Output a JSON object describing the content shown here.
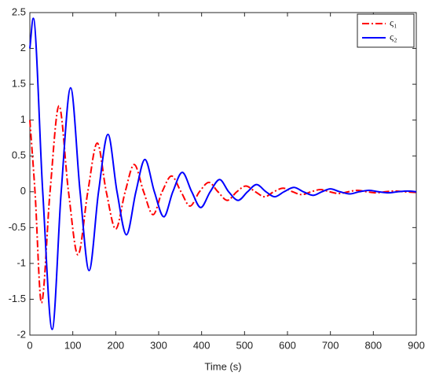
{
  "chart_data": {
    "type": "line",
    "x_label": "Time (s)",
    "xlim": [
      0,
      900
    ],
    "xticks": [
      0,
      100,
      200,
      300,
      400,
      500,
      600,
      700,
      800,
      900
    ],
    "ylim": [
      -2,
      2.5
    ],
    "yticks": [
      -2,
      -1.5,
      -1,
      -0.5,
      0,
      0.5,
      1,
      1.5,
      2,
      2.5
    ],
    "grid": false,
    "legend": "upper right",
    "series": [
      {
        "name": "ς₁",
        "color": "#ff0000",
        "style": "dashdot",
        "x": [
          0,
          12,
          27,
          47,
          68,
          90,
          112,
          135,
          157,
          178,
          200,
          222,
          243,
          265,
          287,
          308,
          330,
          352,
          373,
          395,
          417,
          438,
          460,
          482,
          503,
          525,
          547,
          568,
          590,
          612,
          633,
          655,
          677,
          698,
          720,
          742,
          763,
          785,
          807,
          828,
          850,
          872,
          900
        ],
        "values": [
          1.0,
          0,
          -1.55,
          0,
          1.2,
          0,
          -0.88,
          0,
          0.68,
          0,
          -0.52,
          0,
          0.38,
          0,
          -0.32,
          0,
          0.22,
          0,
          -0.2,
          0,
          0.13,
          0,
          -0.12,
          0,
          0.08,
          0,
          -0.07,
          0,
          0.05,
          0,
          -0.04,
          0,
          0.03,
          0,
          -0.025,
          0,
          0.02,
          0,
          -0.015,
          0,
          0.01,
          0,
          -0.01
        ]
      },
      {
        "name": "ς₂",
        "color": "#0000ff",
        "style": "solid",
        "x": [
          0,
          8,
          30,
          52,
          73,
          95,
          117,
          138,
          160,
          182,
          203,
          225,
          247,
          268,
          290,
          312,
          333,
          355,
          377,
          398,
          420,
          442,
          463,
          485,
          507,
          528,
          550,
          570,
          592,
          615,
          637,
          660,
          680,
          700,
          722,
          745,
          767,
          790,
          812,
          835,
          857,
          880,
          900
        ],
        "values": [
          2.0,
          2.42,
          0,
          -1.92,
          0,
          1.45,
          0,
          -1.1,
          0,
          0.8,
          0,
          -0.6,
          0,
          0.45,
          0,
          -0.35,
          0,
          0.27,
          0,
          -0.22,
          0,
          0.17,
          0,
          -0.12,
          0,
          0.1,
          0,
          -0.07,
          0,
          0.06,
          0,
          -0.05,
          0,
          0.04,
          0,
          -0.03,
          0,
          0.02,
          0,
          -0.015,
          0,
          0.01,
          0
        ]
      }
    ]
  }
}
